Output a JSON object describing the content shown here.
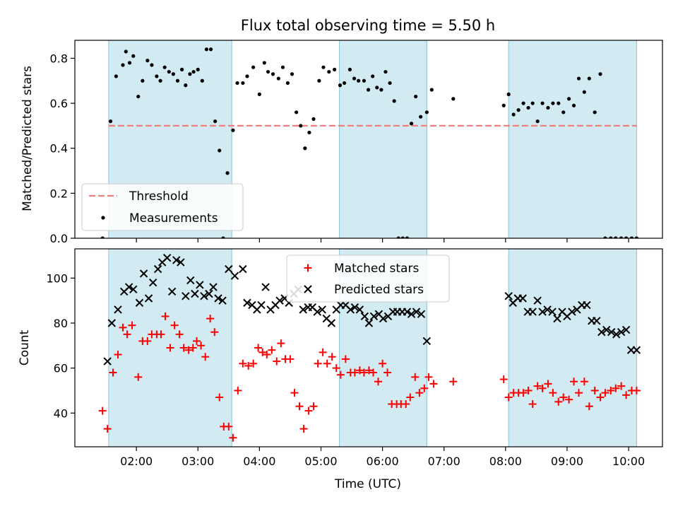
{
  "chart_data": [
    {
      "type": "scatter",
      "title": "Flux total observing time = 5.50 h",
      "ylabel": "Matched/Predicted stars",
      "xlabel": "",
      "ylim": [
        0,
        0.88
      ],
      "yticks": [
        0.0,
        0.2,
        0.4,
        0.6,
        0.8
      ],
      "ytick_labels": [
        "0.0",
        "0.2",
        "0.4",
        "0.6",
        "0.8"
      ],
      "x_unit": "hours UTC",
      "xlim": [
        1.0,
        10.55
      ],
      "shaded_intervals": [
        [
          1.55,
          3.55
        ],
        [
          5.3,
          6.72
        ],
        [
          8.05,
          10.13
        ]
      ],
      "shade_color": "#add8e6",
      "threshold": {
        "name": "Threshold",
        "value": 0.5,
        "x_range": [
          1.55,
          10.13
        ],
        "color": "#f08080"
      },
      "legend": {
        "position": "lower-left",
        "entries": [
          "Threshold",
          "Measurements"
        ]
      },
      "series": [
        {
          "name": "Measurements",
          "color": "#000000",
          "x": [
            1.45,
            1.58,
            1.67,
            1.78,
            1.83,
            1.89,
            1.95,
            2.03,
            2.1,
            2.18,
            2.25,
            2.33,
            2.39,
            2.46,
            2.53,
            2.6,
            2.67,
            2.74,
            2.8,
            2.87,
            2.93,
            3.0,
            3.07,
            3.14,
            3.21,
            3.28,
            3.35,
            3.41,
            3.48,
            3.57,
            3.64,
            3.73,
            3.8,
            3.9,
            4.0,
            4.08,
            4.14,
            4.22,
            4.31,
            4.38,
            4.46,
            4.53,
            4.6,
            4.67,
            4.74,
            4.81,
            4.88,
            4.97,
            5.04,
            5.13,
            5.22,
            5.31,
            5.38,
            5.47,
            5.54,
            5.61,
            5.7,
            5.77,
            5.84,
            5.91,
            5.98,
            6.05,
            6.12,
            6.19,
            6.26,
            6.33,
            6.4,
            6.47,
            6.54,
            6.62,
            6.72,
            6.8,
            7.15,
            7.97,
            8.05,
            8.13,
            8.21,
            8.29,
            8.37,
            8.44,
            8.52,
            8.6,
            8.69,
            8.77,
            8.86,
            8.94,
            9.03,
            9.11,
            9.19,
            9.28,
            9.36,
            9.45,
            9.54,
            9.62,
            9.71,
            9.79,
            9.88,
            9.96,
            10.05,
            10.13
          ],
          "y": [
            0.0,
            0.52,
            0.72,
            0.77,
            0.83,
            0.78,
            0.81,
            0.63,
            0.7,
            0.79,
            0.77,
            0.72,
            0.7,
            0.76,
            0.74,
            0.73,
            0.7,
            0.75,
            0.68,
            0.73,
            0.74,
            0.75,
            0.7,
            0.84,
            0.84,
            0.52,
            0.39,
            0.0,
            0.29,
            0.48,
            0.69,
            0.69,
            0.72,
            0.76,
            0.64,
            0.78,
            0.74,
            0.73,
            0.71,
            0.76,
            0.69,
            0.73,
            0.56,
            0.5,
            0.4,
            0.47,
            0.53,
            0.7,
            0.76,
            0.74,
            0.75,
            0.68,
            0.69,
            0.75,
            0.71,
            0.7,
            0.7,
            0.66,
            0.72,
            0.67,
            0.66,
            0.74,
            0.69,
            0.61,
            0.0,
            0.0,
            0.0,
            0.51,
            0.63,
            0.54,
            0.56,
            0.66,
            0.62,
            0.59,
            0.64,
            0.55,
            0.57,
            0.6,
            0.58,
            0.6,
            0.52,
            0.6,
            0.58,
            0.6,
            0.6,
            0.56,
            0.62,
            0.59,
            0.71,
            0.65,
            0.71,
            0.56,
            0.73,
            0.0,
            0.0,
            0.0,
            0.0,
            0.0,
            0.0,
            0.0
          ]
        }
      ]
    },
    {
      "type": "scatter",
      "title": "",
      "ylabel": "Count",
      "xlabel": "Time (UTC)",
      "ylim": [
        25,
        113
      ],
      "yticks": [
        40,
        60,
        80,
        100
      ],
      "ytick_labels": [
        "40",
        "60",
        "80",
        "100"
      ],
      "x_unit": "hours UTC",
      "xlim": [
        1.0,
        10.55
      ],
      "xticks": [
        2,
        3,
        4,
        5,
        6,
        7,
        8,
        9,
        10
      ],
      "xtick_labels": [
        "02:00",
        "03:00",
        "04:00",
        "05:00",
        "06:00",
        "07:00",
        "08:00",
        "09:00",
        "10:00"
      ],
      "shaded_intervals": [
        [
          1.55,
          3.55
        ],
        [
          5.3,
          6.72
        ],
        [
          8.05,
          10.13
        ]
      ],
      "shade_color": "#add8e6",
      "legend": {
        "position": "top-center",
        "entries": [
          "Matched stars",
          "Predicted stars"
        ]
      },
      "series": [
        {
          "name": "Matched stars",
          "marker": "plus",
          "color": "#ff0000",
          "x": [
            1.45,
            1.53,
            1.62,
            1.7,
            1.78,
            1.85,
            1.93,
            2.03,
            2.1,
            2.18,
            2.25,
            2.33,
            2.4,
            2.47,
            2.55,
            2.62,
            2.7,
            2.77,
            2.85,
            2.92,
            2.98,
            3.05,
            3.12,
            3.2,
            3.27,
            3.35,
            3.42,
            3.5,
            3.57,
            3.65,
            3.73,
            3.82,
            3.9,
            3.98,
            4.05,
            4.12,
            4.2,
            4.28,
            4.35,
            4.42,
            4.5,
            4.57,
            4.65,
            4.72,
            4.8,
            4.88,
            4.95,
            5.03,
            5.1,
            5.18,
            5.25,
            5.32,
            5.4,
            5.48,
            5.55,
            5.63,
            5.7,
            5.78,
            5.85,
            5.93,
            6.0,
            6.08,
            6.15,
            6.23,
            6.3,
            6.38,
            6.45,
            6.53,
            6.6,
            6.68,
            6.75,
            6.83,
            7.15,
            7.97,
            8.05,
            8.13,
            8.21,
            8.29,
            8.37,
            8.44,
            8.52,
            8.6,
            8.69,
            8.77,
            8.86,
            8.94,
            9.03,
            9.11,
            9.19,
            9.28,
            9.36,
            9.45,
            9.54,
            9.62,
            9.71,
            9.79,
            9.88,
            9.96,
            10.05,
            10.13
          ],
          "y": [
            41,
            33,
            58,
            66,
            78,
            75,
            79,
            56,
            72,
            72,
            75,
            75,
            75,
            83,
            69,
            79,
            75,
            69,
            68,
            69,
            72,
            70,
            65,
            82,
            76,
            47,
            34,
            34,
            29,
            50,
            62,
            61,
            62,
            69,
            67,
            66,
            68,
            63,
            71,
            64,
            64,
            49,
            43,
            33,
            41,
            43,
            62,
            67,
            62,
            65,
            60,
            57,
            64,
            58,
            58,
            59,
            58,
            59,
            58,
            54,
            62,
            58,
            44,
            44,
            44,
            44,
            47,
            56,
            49,
            51,
            56,
            53,
            54,
            55,
            47,
            49,
            49,
            49,
            50,
            44,
            52,
            51,
            53,
            49,
            45,
            47,
            46,
            54,
            49,
            54,
            43,
            50,
            47,
            49,
            50,
            51,
            52,
            48,
            50,
            50
          ]
        },
        {
          "name": "Predicted stars",
          "marker": "cross",
          "color": "#000000",
          "x": [
            1.53,
            1.6,
            1.7,
            1.8,
            1.88,
            1.95,
            2.05,
            2.12,
            2.2,
            2.27,
            2.35,
            2.42,
            2.5,
            2.58,
            2.65,
            2.72,
            2.8,
            2.88,
            2.95,
            3.03,
            3.1,
            3.18,
            3.25,
            3.33,
            3.4,
            3.5,
            3.6,
            3.73,
            3.8,
            3.88,
            3.96,
            4.03,
            4.1,
            4.18,
            4.26,
            4.33,
            4.41,
            4.48,
            4.56,
            4.63,
            4.71,
            4.79,
            4.86,
            4.94,
            5.02,
            5.09,
            5.17,
            5.25,
            5.32,
            5.4,
            5.48,
            5.55,
            5.63,
            5.71,
            5.78,
            5.86,
            5.94,
            6.01,
            6.09,
            6.17,
            6.24,
            6.32,
            6.4,
            6.47,
            6.55,
            6.63,
            6.72,
            8.05,
            8.12,
            8.2,
            8.28,
            8.36,
            8.44,
            8.52,
            8.6,
            8.68,
            8.76,
            8.84,
            8.92,
            9.0,
            9.08,
            9.16,
            9.24,
            9.32,
            9.4,
            9.48,
            9.56,
            9.64,
            9.72,
            9.8,
            9.88,
            9.96,
            10.04,
            10.13
          ],
          "y": [
            63,
            80,
            86,
            94,
            96,
            95,
            89,
            102,
            91,
            98,
            104,
            107,
            109,
            94,
            108,
            107,
            92,
            99,
            93,
            97,
            92,
            93,
            96,
            91,
            90,
            104,
            101,
            104,
            89,
            88,
            86,
            88,
            96,
            86,
            88,
            90,
            91,
            89,
            93,
            95,
            86,
            87,
            87,
            85,
            86,
            82,
            80,
            86,
            88,
            88,
            86,
            87,
            86,
            83,
            80,
            83,
            84,
            82,
            83,
            85,
            85,
            85,
            85,
            84,
            85,
            84,
            72,
            92,
            89,
            91,
            91,
            85,
            85,
            90,
            85,
            86,
            85,
            82,
            85,
            83,
            85,
            86,
            88,
            88,
            81,
            81,
            76,
            77,
            76,
            75,
            76,
            77,
            68,
            68
          ]
        }
      ]
    }
  ]
}
